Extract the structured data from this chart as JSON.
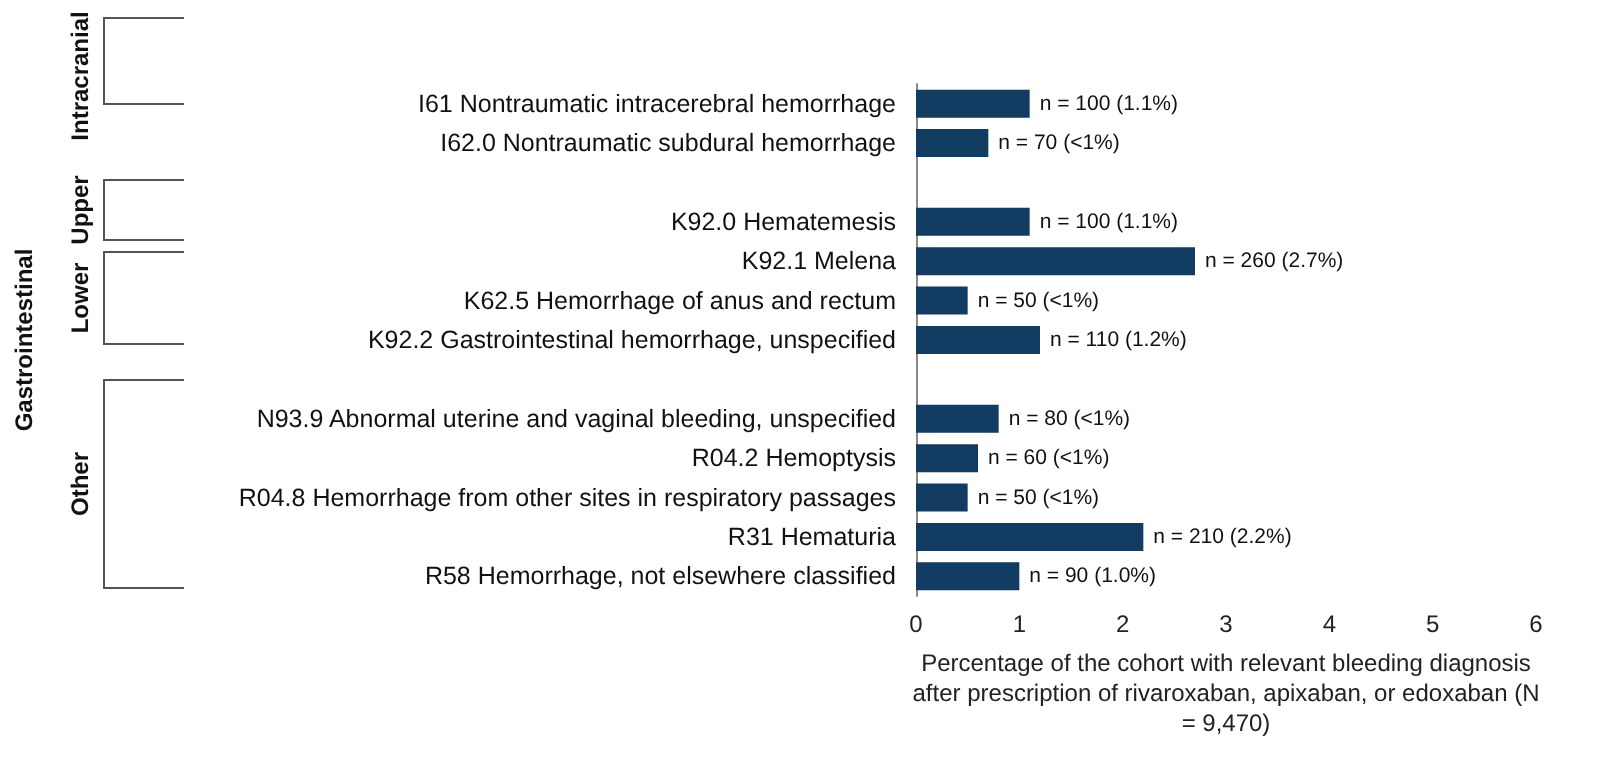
{
  "chart_data": {
    "type": "bar",
    "orientation": "horizontal",
    "xlabel": "Percentage of the cohort with relevant bleeding diagnosis after prescription of rivaroxaban, apixaban, or edoxaban (N = 9,470)",
    "categories": [
      "I61 Nontraumatic intracerebral hemorrhage",
      "I62.0 Nontraumatic subdural hemorrhage",
      null,
      "K92.0 Hematemesis",
      "K92.1 Melena",
      "K62.5 Hemorrhage of anus and rectum",
      "K92.2 Gastrointestinal hemorrhage, unspecified",
      null,
      "N93.9 Abnormal uterine and vaginal bleeding, unspecified",
      "R04.2 Hemoptysis",
      "R04.8 Hemorrhage from other sites in respiratory passages",
      "R31 Hematuria",
      "R58 Hemorrhage, not elsewhere classified"
    ],
    "values": [
      1.1,
      0.7,
      null,
      1.1,
      2.7,
      0.5,
      1.2,
      null,
      0.8,
      0.6,
      0.5,
      2.2,
      1.0
    ],
    "value_labels": [
      "n = 100 (1.1%)",
      "n = 70 (<1%)",
      null,
      "n = 100 (1.1%)",
      "n = 260 (2.7%)",
      "n = 50 (<1%)",
      "n = 110 (1.2%)",
      null,
      "n = 80 (<1%)",
      "n = 60 (<1%)",
      "n = 50 (<1%)",
      "n = 210 (2.2%)",
      "n = 90 (1.0%)"
    ],
    "color": "#123b61",
    "xlim": [
      0,
      6
    ],
    "xticks": [
      0,
      1,
      2,
      3,
      4,
      5,
      6
    ],
    "grid": false,
    "annotations": [
      "Intracranial",
      "Upper",
      "Lower",
      "Other",
      "Gastrointestinal"
    ]
  }
}
